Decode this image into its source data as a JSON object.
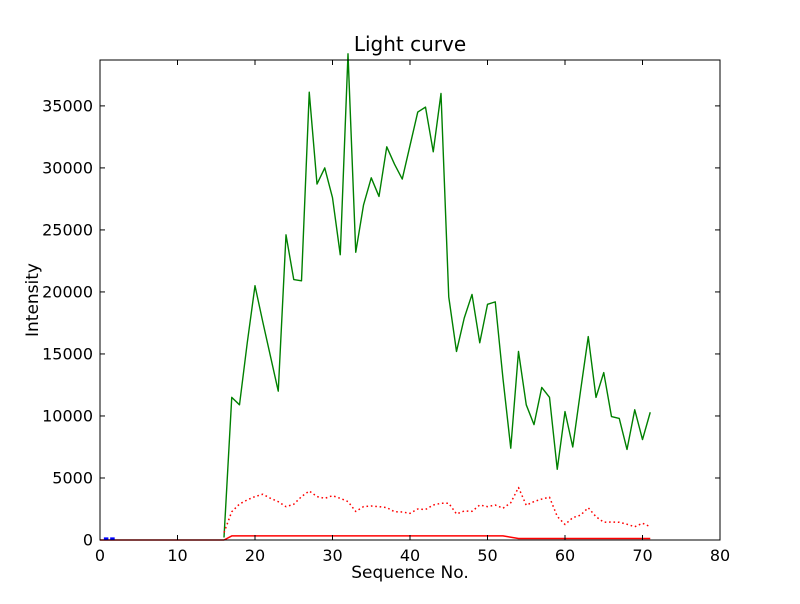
{
  "figure": {
    "background": "#ffffff"
  },
  "chart_data": {
    "type": "line",
    "title": "Light curve",
    "xlabel": "Sequence No.",
    "ylabel": "Intensity",
    "xlim": [
      0,
      80
    ],
    "ylim": [
      0,
      38700
    ],
    "xticks": [
      0,
      10,
      20,
      30,
      40,
      50,
      60,
      70,
      80
    ],
    "yticks": [
      0,
      5000,
      10000,
      15000,
      20000,
      25000,
      30000,
      35000
    ],
    "grid": false,
    "legend": null,
    "series": [
      {
        "name": "main-light-curve",
        "color": "#008000",
        "style": "solid",
        "width": 1.4,
        "x": [
          16,
          17,
          18,
          19,
          20,
          21,
          22,
          23,
          24,
          25,
          26,
          27,
          28,
          29,
          30,
          31,
          32,
          33,
          34,
          35,
          36,
          37,
          38,
          39,
          40,
          41,
          42,
          43,
          44,
          45,
          46,
          47,
          48,
          49,
          50,
          51,
          52,
          53,
          54,
          55,
          56,
          57,
          58,
          59,
          60,
          61,
          62,
          63,
          64,
          65,
          66,
          67,
          68,
          69,
          70,
          71
        ],
        "y": [
          200,
          11500,
          10900,
          15900,
          20500,
          17600,
          14800,
          12000,
          24600,
          21000,
          20900,
          36100,
          28700,
          30000,
          27600,
          23000,
          39200,
          23200,
          27000,
          29200,
          27700,
          31700,
          30300,
          29100,
          31800,
          34500,
          34900,
          31300,
          36000,
          19600,
          15200,
          17900,
          19800,
          15900,
          19000,
          19200,
          13000,
          7400,
          15200,
          10900,
          9300,
          12300,
          11500,
          5700,
          10350,
          7500,
          12000,
          16400,
          11500,
          13500,
          9950,
          9800,
          7300,
          10500,
          8100,
          10300
        ]
      },
      {
        "name": "red-dotted-curve",
        "color": "#ff0000",
        "style": "dotted",
        "width": 1.5,
        "x": [
          16,
          17,
          18,
          19,
          20,
          21,
          22,
          23,
          24,
          25,
          26,
          27,
          28,
          29,
          30,
          31,
          32,
          33,
          34,
          35,
          36,
          37,
          38,
          39,
          40,
          41,
          42,
          43,
          44,
          45,
          46,
          47,
          48,
          49,
          50,
          51,
          52,
          53,
          54,
          55,
          56,
          57,
          58,
          59,
          60,
          61,
          62,
          63,
          64,
          65,
          66,
          67,
          68,
          69,
          70,
          71
        ],
        "y": [
          600,
          2280,
          2900,
          3230,
          3500,
          3690,
          3360,
          3090,
          2690,
          2880,
          3500,
          3950,
          3500,
          3360,
          3570,
          3360,
          3100,
          2300,
          2690,
          2740,
          2690,
          2610,
          2280,
          2260,
          2150,
          2500,
          2460,
          2820,
          2960,
          2960,
          2100,
          2340,
          2310,
          2820,
          2690,
          2820,
          2560,
          3000,
          4230,
          2800,
          3100,
          3300,
          3450,
          1900,
          1250,
          1800,
          2000,
          2600,
          1880,
          1430,
          1450,
          1430,
          1270,
          1070,
          1350,
          1070
        ]
      },
      {
        "name": "red-solid-baseline",
        "color": "#ff0000",
        "style": "solid",
        "width": 1.5,
        "x": [
          0,
          16,
          17,
          52,
          54,
          71
        ],
        "y": [
          0,
          0,
          330,
          330,
          120,
          120
        ]
      },
      {
        "name": "blue-dashed-segment",
        "color": "#0000ff",
        "style": "dashed",
        "width": 2.2,
        "x": [
          0.5,
          2.0
        ],
        "y": [
          120,
          120
        ]
      }
    ]
  }
}
